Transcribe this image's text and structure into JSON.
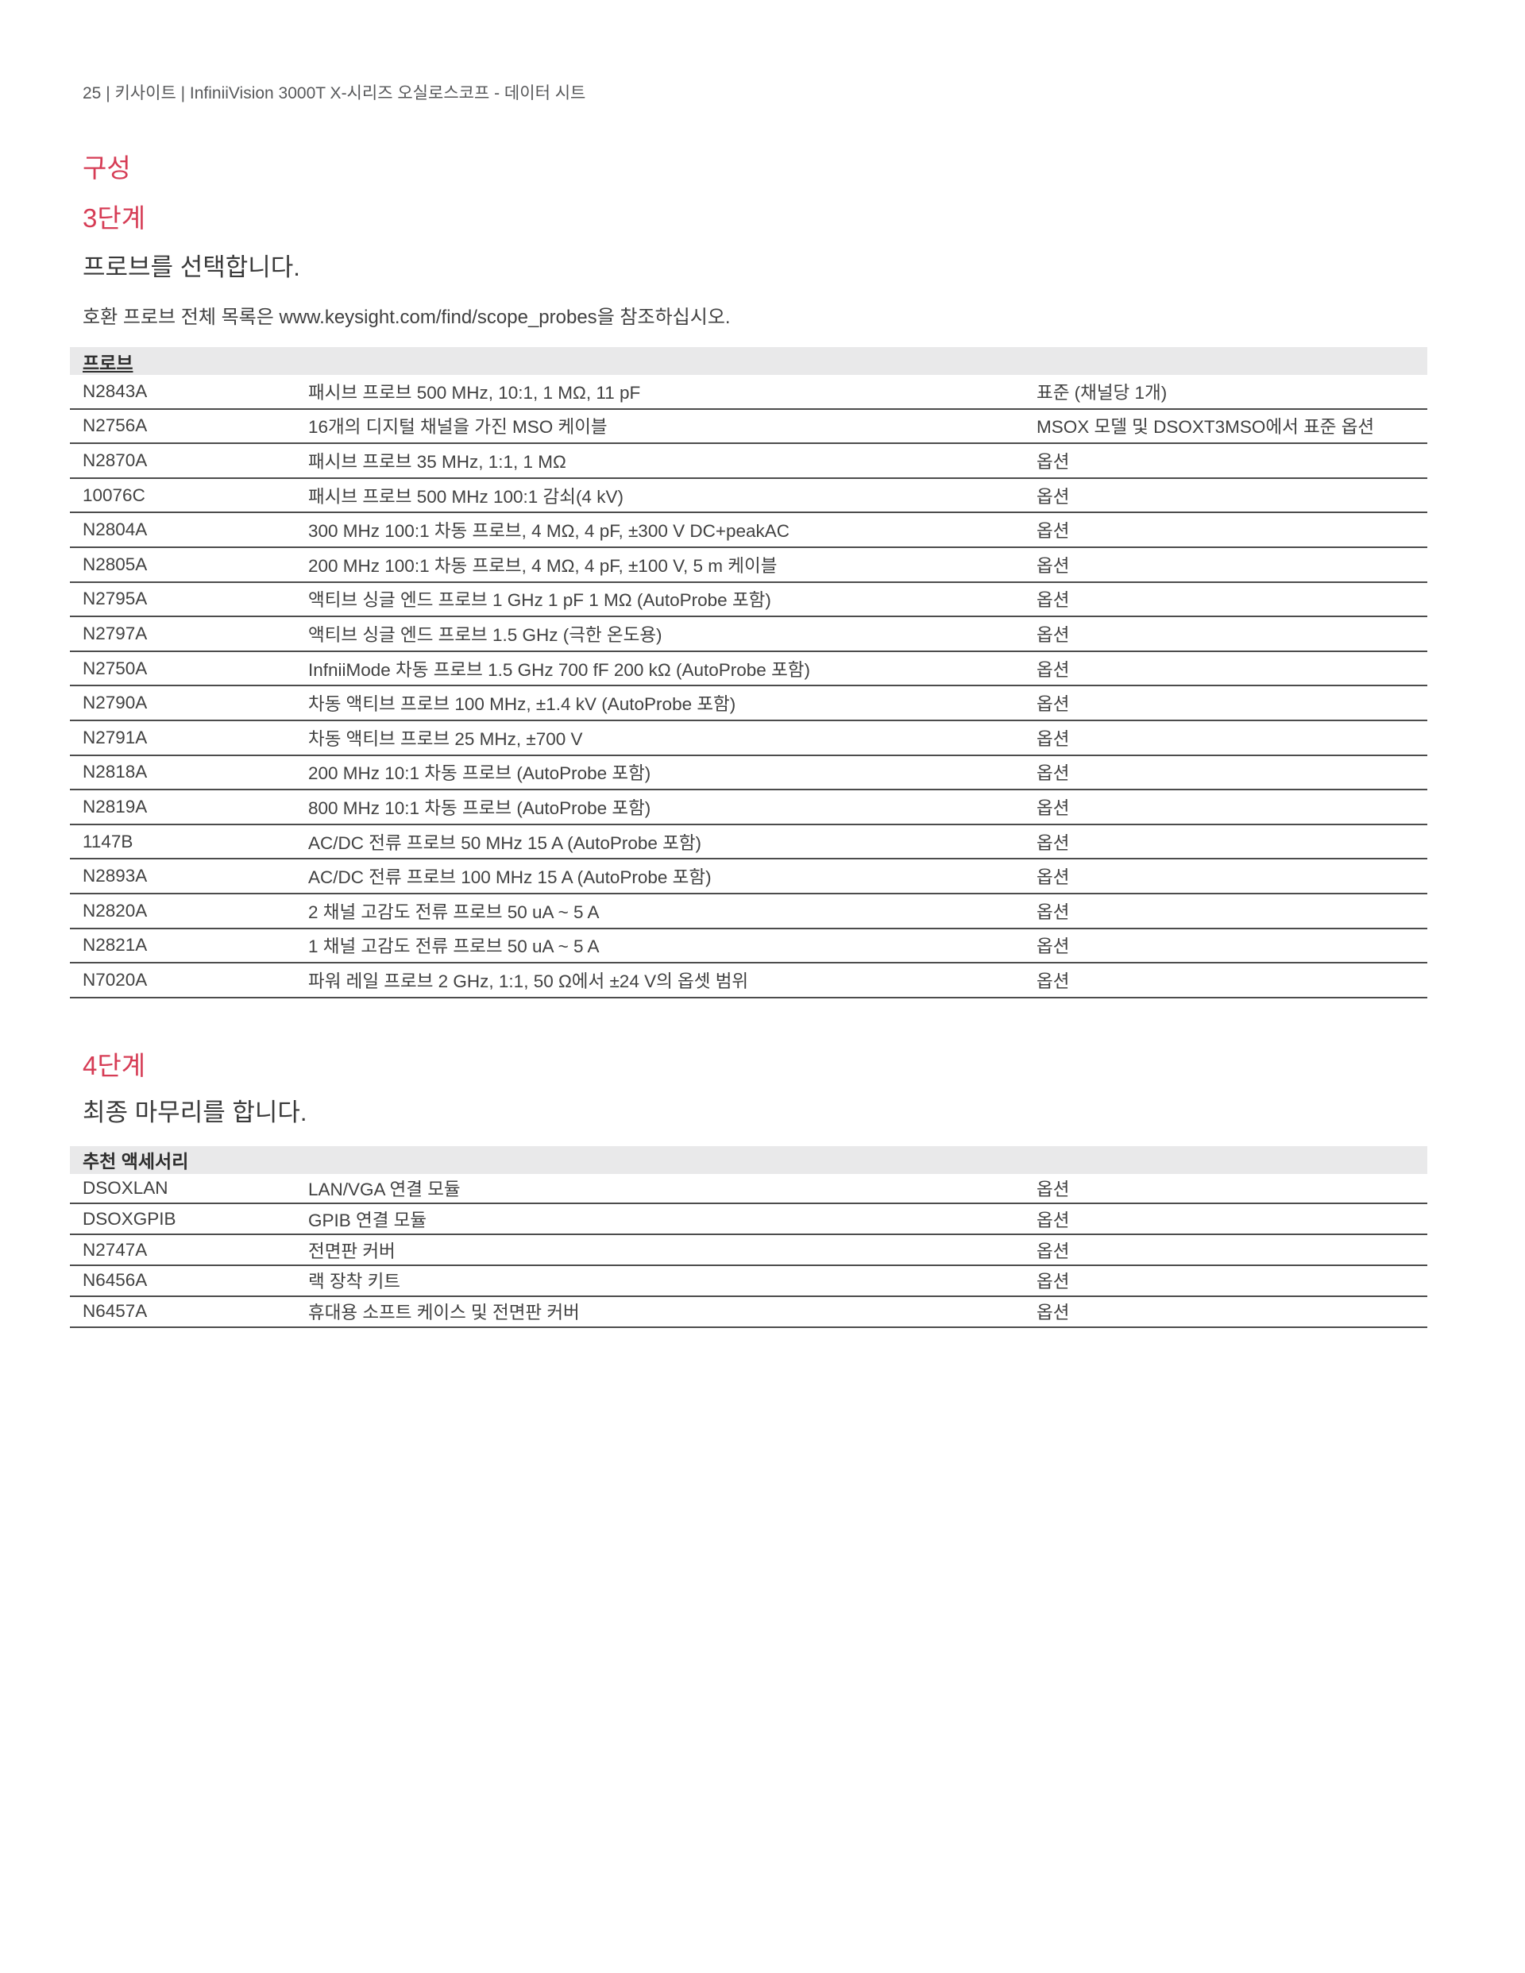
{
  "page": {
    "header": "25 | 키사이트 | InfiniiVision 3000T X-시리즈 오실로스코프 - 데이터 시트",
    "section_title": "구성",
    "colors": {
      "accent_red": "#d63c55",
      "body_text": "#414141",
      "muted_text": "#57585a",
      "table_header_bg": "#e9e9ea",
      "row_border": "#4c4c4c"
    }
  },
  "step3": {
    "title": "3단계",
    "subtitle": "프로브를 선택합니다.",
    "note_prefix": "호환 프로브 전체 목록은 ",
    "note_url": "www.keysight.com/find/scope_probes",
    "note_suffix": "을 참조하십시오.",
    "table": {
      "header": "프로브",
      "rows": [
        [
          "N2843A",
          "패시브 프로브 500 MHz, 10:1, 1 MΩ, 11 pF",
          "표준 (채널당 1개)"
        ],
        [
          "N2756A",
          "16개의 디지털 채널을 가진 MSO 케이블",
          "MSOX 모델 및 DSOXT3MSO에서 표준 옵션"
        ],
        [
          "N2870A",
          "패시브 프로브 35 MHz, 1:1, 1 MΩ",
          "옵션"
        ],
        [
          "10076C",
          "패시브 프로브 500 MHz 100:1 감쇠(4 kV)",
          "옵션"
        ],
        [
          "N2804A",
          "300 MHz 100:1 차동 프로브, 4 MΩ, 4 pF, ±300 V DC+peakAC",
          "옵션"
        ],
        [
          "N2805A",
          "200 MHz 100:1 차동 프로브, 4 MΩ, 4 pF, ±100 V, 5 m 케이블",
          "옵션"
        ],
        [
          "N2795A",
          "액티브 싱글 엔드 프로브 1 GHz 1 pF 1 MΩ (AutoProbe 포함)",
          "옵션"
        ],
        [
          "N2797A",
          "액티브 싱글 엔드 프로브 1.5 GHz (극한 온도용)",
          "옵션"
        ],
        [
          "N2750A",
          "InfniiMode 차동 프로브 1.5 GHz 700 fF 200 kΩ (AutoProbe 포함)",
          "옵션"
        ],
        [
          "N2790A",
          "차동 액티브 프로브 100 MHz, ±1.4 kV (AutoProbe 포함)",
          "옵션"
        ],
        [
          "N2791A",
          "차동 액티브 프로브 25 MHz, ±700 V",
          "옵션"
        ],
        [
          "N2818A",
          "200 MHz 10:1 차동 프로브 (AutoProbe 포함)",
          "옵션"
        ],
        [
          "N2819A",
          "800 MHz 10:1 차동 프로브 (AutoProbe 포함)",
          "옵션"
        ],
        [
          "1147B",
          "AC/DC 전류 프로브 50 MHz 15 A (AutoProbe 포함)",
          "옵션"
        ],
        [
          "N2893A",
          "AC/DC 전류 프로브 100 MHz 15 A (AutoProbe 포함)",
          "옵션"
        ],
        [
          "N2820A",
          "2 채널 고감도 전류 프로브 50 uA ~ 5 A",
          "옵션"
        ],
        [
          "N2821A",
          "1 채널 고감도 전류 프로브 50 uA ~ 5 A",
          "옵션"
        ],
        [
          "N7020A",
          "파워 레일 프로브 2 GHz, 1:1, 50 Ω에서 ±24 V의 옵셋 범위",
          "옵션"
        ]
      ]
    }
  },
  "step4": {
    "title": "4단계",
    "subtitle": "최종 마무리를 합니다.",
    "table": {
      "header": "추천 액세서리",
      "rows": [
        [
          "DSOXLAN",
          "LAN/VGA 연결 모듈",
          "옵션"
        ],
        [
          "DSOXGPIB",
          "GPIB 연결 모듈",
          "옵션"
        ],
        [
          "N2747A",
          "전면판 커버",
          "옵션"
        ],
        [
          "N6456A",
          "랙 장착 키트",
          "옵션"
        ],
        [
          "N6457A",
          "휴대용 소프트 케이스 및 전면판 커버",
          "옵션"
        ]
      ]
    }
  }
}
